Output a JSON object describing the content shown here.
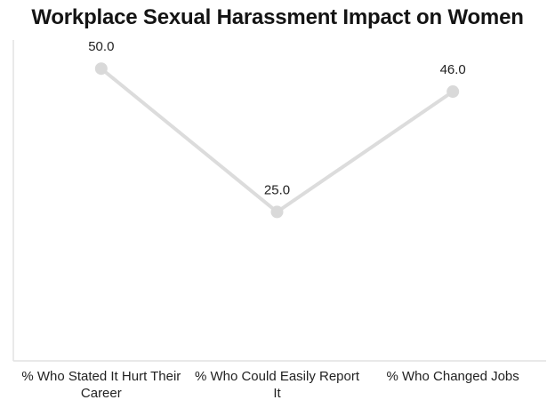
{
  "chart": {
    "colors": {
      "series_line": "#dcdcdc",
      "marker": "#d9d9d9",
      "axis_line": "#e2e2e2",
      "label_text": "#222222",
      "title_text": "#141414",
      "background": "#ffffff"
    }
  },
  "chart_data": {
    "type": "line",
    "title": "Workplace Sexual Harassment Impact on Women",
    "categories": [
      "% Who Stated It Hurt Their Career",
      "% Who Could Easily Report It",
      "% Who Changed Jobs"
    ],
    "values": [
      50.0,
      25.0,
      46.0
    ],
    "value_labels": [
      "50.0",
      "25.0",
      "46.0"
    ],
    "xlabel": "",
    "ylabel": "",
    "ylim": [
      -1,
      55
    ],
    "grid": false,
    "legend": "none",
    "marker_style": "circle",
    "annotations": "values shown above each point"
  }
}
